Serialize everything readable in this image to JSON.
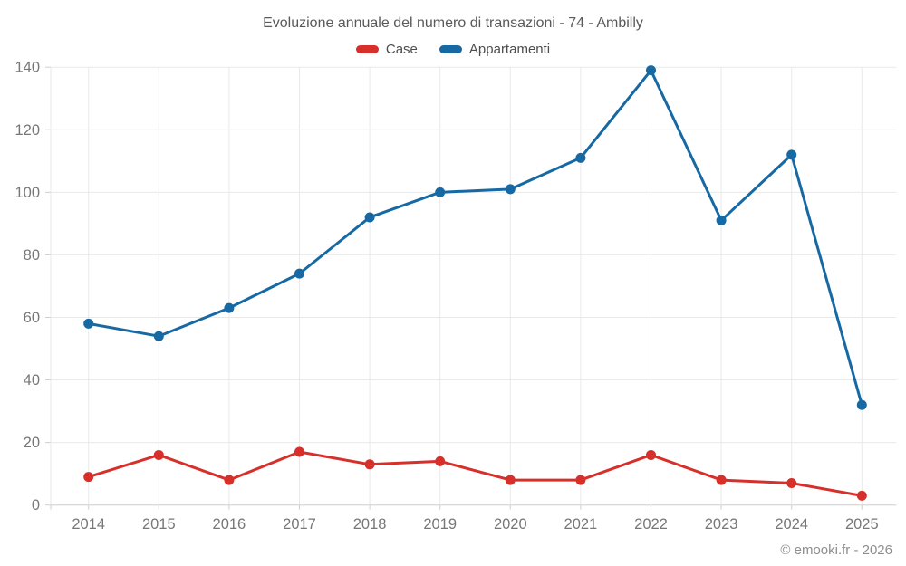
{
  "header": {
    "title": "Evoluzione annuale del numero di transazioni - 74 - Ambilly"
  },
  "footer": {
    "credit": "© emooki.fr - 2026"
  },
  "chart_data": {
    "type": "line",
    "title": "Evoluzione annuale del numero di transazioni - 74 - Ambilly",
    "categories": [
      "2014",
      "2015",
      "2016",
      "2017",
      "2018",
      "2019",
      "2020",
      "2021",
      "2022",
      "2023",
      "2024",
      "2025"
    ],
    "series": [
      {
        "name": "Case",
        "color": "#d7302b",
        "values": [
          9,
          16,
          8,
          17,
          13,
          14,
          8,
          8,
          16,
          8,
          7,
          3
        ]
      },
      {
        "name": "Appartamenti",
        "color": "#1769a3",
        "values": [
          58,
          54,
          63,
          74,
          92,
          100,
          101,
          111,
          139,
          91,
          112,
          32
        ]
      }
    ],
    "xlabel": "",
    "ylabel": "",
    "ylim": [
      0,
      140
    ],
    "ytick_step": 20,
    "grid": true,
    "legend_position": "top",
    "colors": {
      "grid_line": "#e9e9ea",
      "axis_line": "#cdced0",
      "tick_label": "#767779",
      "title_text": "#58595b",
      "footer_text": "#8d8e90"
    }
  }
}
